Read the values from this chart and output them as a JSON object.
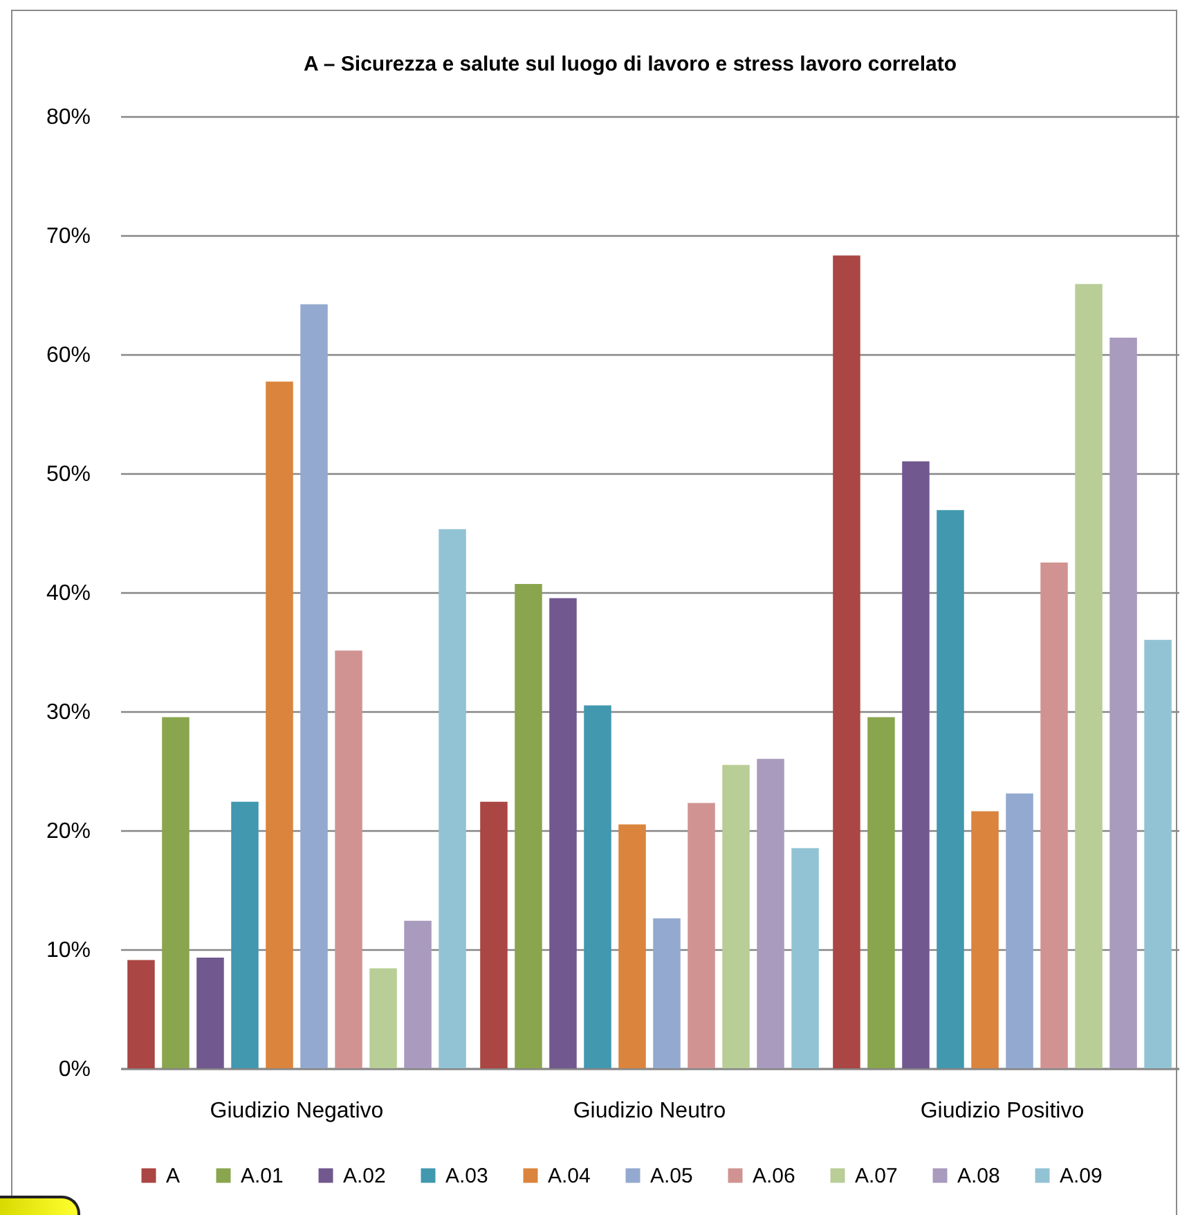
{
  "chart_data": {
    "type": "bar",
    "title": "A – Sicurezza e salute sul luogo di lavoro e stress lavoro correlato",
    "categories": [
      "Giudizio Negativo",
      "Giudizio Neutro",
      "Giudizio Positivo"
    ],
    "series": [
      {
        "name": "A",
        "color": "#aa4643",
        "values": [
          9.1,
          22.4,
          68.3
        ]
      },
      {
        "name": "A.01",
        "color": "#89a54e",
        "values": [
          29.5,
          40.7,
          29.5
        ]
      },
      {
        "name": "A.02",
        "color": "#71588f",
        "values": [
          9.3,
          39.5,
          51.0
        ]
      },
      {
        "name": "A.03",
        "color": "#4198af",
        "values": [
          22.4,
          30.5,
          46.9
        ]
      },
      {
        "name": "A.04",
        "color": "#db843d",
        "values": [
          57.7,
          20.5,
          21.6
        ]
      },
      {
        "name": "A.05",
        "color": "#93a9cf",
        "values": [
          64.2,
          12.6,
          23.1
        ]
      },
      {
        "name": "A.06",
        "color": "#d19392",
        "values": [
          35.1,
          22.3,
          42.5
        ]
      },
      {
        "name": "A.07",
        "color": "#b9cd96",
        "values": [
          8.4,
          25.5,
          65.9
        ]
      },
      {
        "name": "A.08",
        "color": "#a99bbd",
        "values": [
          12.4,
          26.0,
          61.4
        ]
      },
      {
        "name": "A.09",
        "color": "#92c3d4",
        "values": [
          45.3,
          18.5,
          36.0
        ]
      }
    ],
    "ylim": [
      0,
      80
    ],
    "yticks": [
      {
        "value": 0,
        "label": "0%"
      },
      {
        "value": 10,
        "label": "10%"
      },
      {
        "value": 20,
        "label": "20%"
      },
      {
        "value": 30,
        "label": "30%"
      },
      {
        "value": 40,
        "label": "40%"
      },
      {
        "value": 50,
        "label": "50%"
      },
      {
        "value": 60,
        "label": "60%"
      },
      {
        "value": 70,
        "label": "70%"
      },
      {
        "value": 80,
        "label": "80%"
      }
    ],
    "grid": "y",
    "legend": "bottom"
  }
}
